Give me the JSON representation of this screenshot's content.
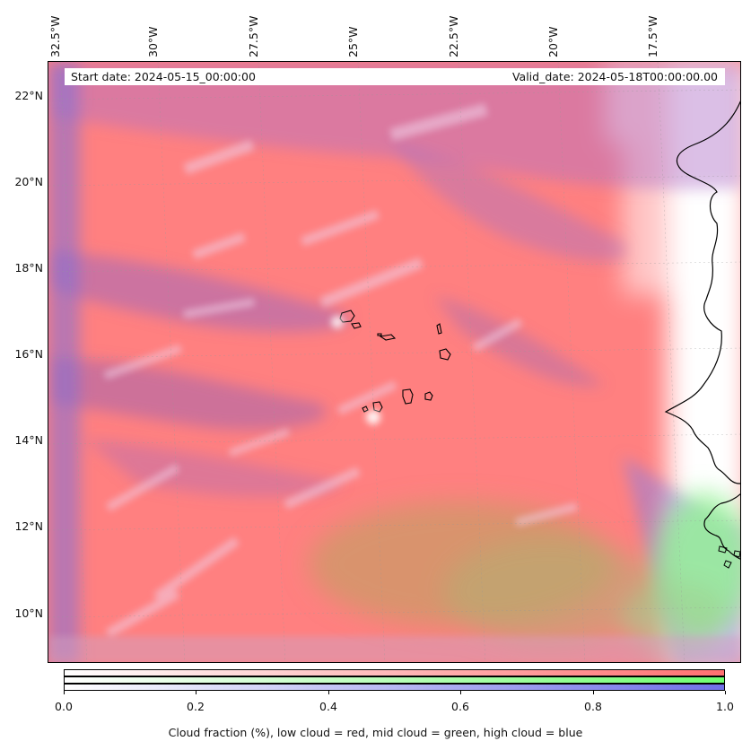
{
  "map": {
    "start_date": "Start date: 2024-05-15_00:00:00",
    "valid_date": "Valid_date: 2024-05-18T00:00:00.00",
    "lon_labels": [
      "32.5°W",
      "30°W",
      "27.5°W",
      "25°W",
      "22.5°W",
      "20°W",
      "17.5°W"
    ],
    "lat_labels": [
      "22°N",
      "20°N",
      "18°N",
      "16°N",
      "14°N",
      "12°N",
      "10°N"
    ],
    "lon_range": [
      -32.8,
      -15.2
    ],
    "lat_range": [
      8.8,
      22.8
    ],
    "colors": {
      "low_cloud": "#ff8080",
      "mid_cloud": "#80ff80",
      "high_cloud": "#8080ff",
      "coastline": "#000000"
    },
    "features": [
      "african-coastline",
      "cape-verde-islands"
    ]
  },
  "colorbar": {
    "ticks": [
      "0.0",
      "0.2",
      "0.4",
      "0.6",
      "0.8",
      "1.0"
    ],
    "tick_values": [
      0.0,
      0.2,
      0.4,
      0.6,
      0.8,
      1.0
    ],
    "label": "Cloud fraction (%), low cloud = red, mid cloud = green, high cloud = blue",
    "range": [
      0.0,
      1.0
    ]
  }
}
